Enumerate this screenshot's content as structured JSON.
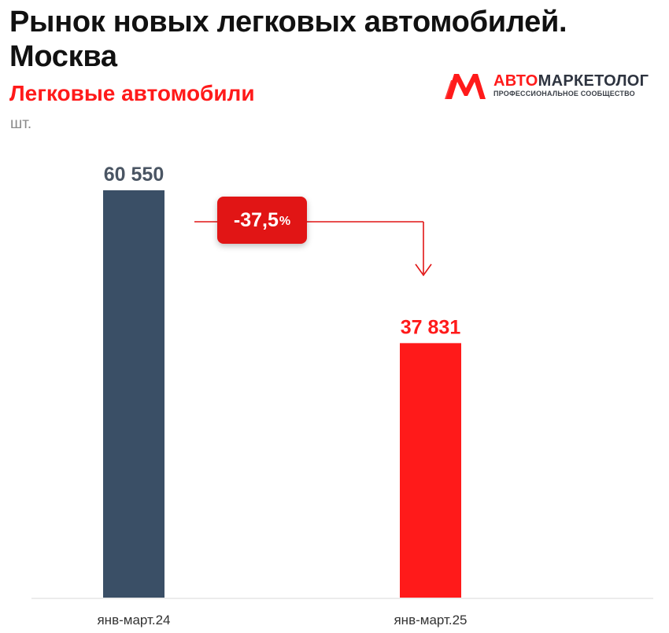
{
  "header": {
    "title": "Рынок новых легковых автомобилей.\nМосква",
    "subtitle": "Легковые автомобили",
    "unit": "шт."
  },
  "logo": {
    "name_part1": "АВТО",
    "name_part2": "МАРКЕТОЛОГ",
    "tagline": "ПРОФЕССИОНАЛЬНОЕ СООБЩЕСТВО"
  },
  "change_badge": {
    "value": "-37,5",
    "suffix": "%"
  },
  "colors": {
    "bar_2024": "#3a4f66",
    "bar_2025": "#ff1a1a",
    "accent": "#e11515"
  },
  "chart_data": {
    "type": "bar",
    "categories": [
      "янв-март.24",
      "янв-март.25"
    ],
    "values": [
      60550,
      37831
    ],
    "value_labels": [
      "60 550",
      "37 831"
    ],
    "title": "Рынок новых легковых автомобилей. Москва",
    "subtitle": "Легковые автомобили",
    "ylabel": "шт.",
    "ylim": [
      0,
      68000
    ],
    "grid": false,
    "annotation": "-37,5%"
  }
}
